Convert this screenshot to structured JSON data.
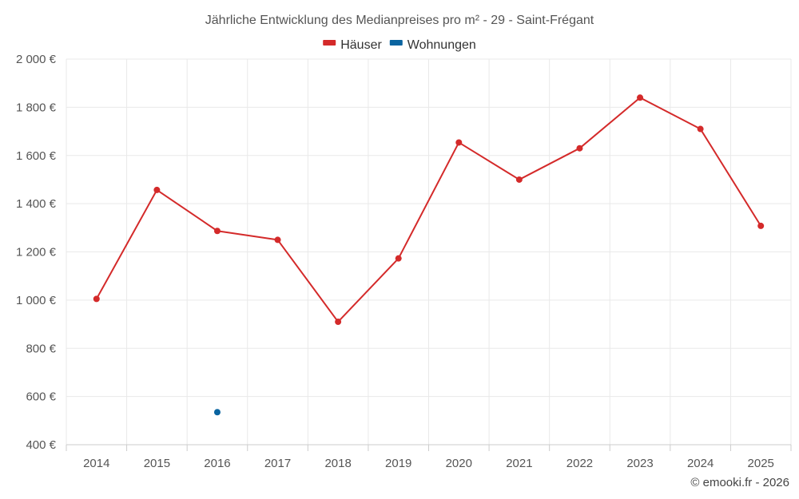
{
  "chart_data": {
    "type": "line",
    "title": "Jährliche Entwicklung des Medianpreises pro m² - 29 - Saint-Frégant",
    "categories": [
      "2014",
      "2015",
      "2016",
      "2017",
      "2018",
      "2019",
      "2020",
      "2021",
      "2022",
      "2023",
      "2024",
      "2025"
    ],
    "series": [
      {
        "name": "Häuser",
        "color": "#d42a2a",
        "values": [
          1005,
          1457,
          1287,
          1250,
          910,
          1173,
          1654,
          1500,
          1630,
          1840,
          1710,
          1308
        ]
      },
      {
        "name": "Wohnungen",
        "color": "#0a64a0",
        "values": [
          null,
          null,
          535,
          null,
          null,
          null,
          null,
          null,
          null,
          null,
          null,
          null
        ]
      }
    ],
    "ylim": [
      400,
      2000
    ],
    "y_ticks": [
      400,
      600,
      800,
      1000,
      1200,
      1400,
      1600,
      1800,
      2000
    ],
    "y_tick_labels": [
      "400 €",
      "600 €",
      "800 €",
      "1 000 €",
      "1 200 €",
      "1 400 €",
      "1 600 €",
      "1 800 €",
      "2 000 €"
    ],
    "xlabel": "",
    "ylabel": "",
    "grid": true,
    "legend_position": "top-center"
  },
  "credit": "© emooki.fr - 2026"
}
